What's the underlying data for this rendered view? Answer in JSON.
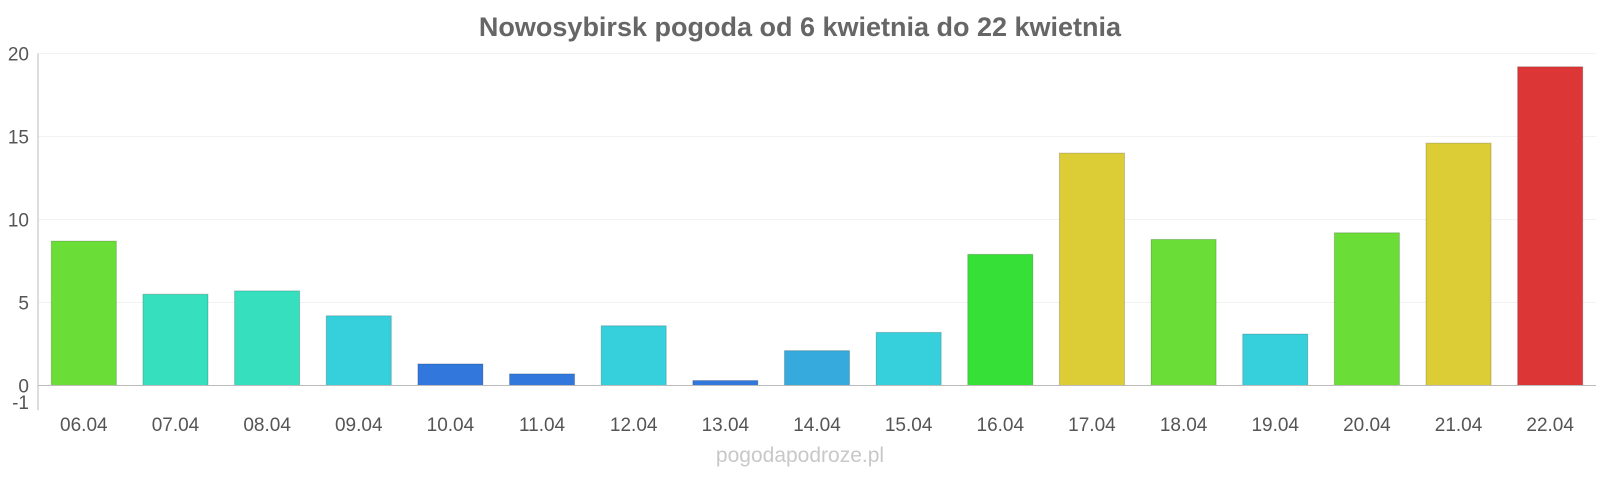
{
  "chart_data": {
    "type": "bar",
    "title": "Nowosybirsk pogoda od 6 kwietnia do 22 kwietnia",
    "categories": [
      "06.04",
      "07.04",
      "08.04",
      "09.04",
      "10.04",
      "11.04",
      "12.04",
      "13.04",
      "14.04",
      "15.04",
      "16.04",
      "17.04",
      "18.04",
      "19.04",
      "20.04",
      "21.04",
      "22.04"
    ],
    "values": [
      8.7,
      5.5,
      5.7,
      4.2,
      1.3,
      0.7,
      3.6,
      0.3,
      2.1,
      3.2,
      7.9,
      14.0,
      8.8,
      3.1,
      9.2,
      14.6,
      19.2
    ],
    "colors": [
      "#6ade36",
      "#36dfbd",
      "#36dfbd",
      "#36cfdc",
      "#3278dc",
      "#3278dc",
      "#36cfdc",
      "#3278dc",
      "#36aadc",
      "#36cfdc",
      "#36e036",
      "#dccd36",
      "#6ade36",
      "#36cfdc",
      "#6ade36",
      "#dccd36",
      "#dc3636"
    ],
    "yticks": [
      20,
      15,
      10,
      5,
      0,
      -1
    ],
    "ylim": [
      -1,
      20
    ],
    "grid": true,
    "watermark": "pogodapodroze.pl"
  }
}
